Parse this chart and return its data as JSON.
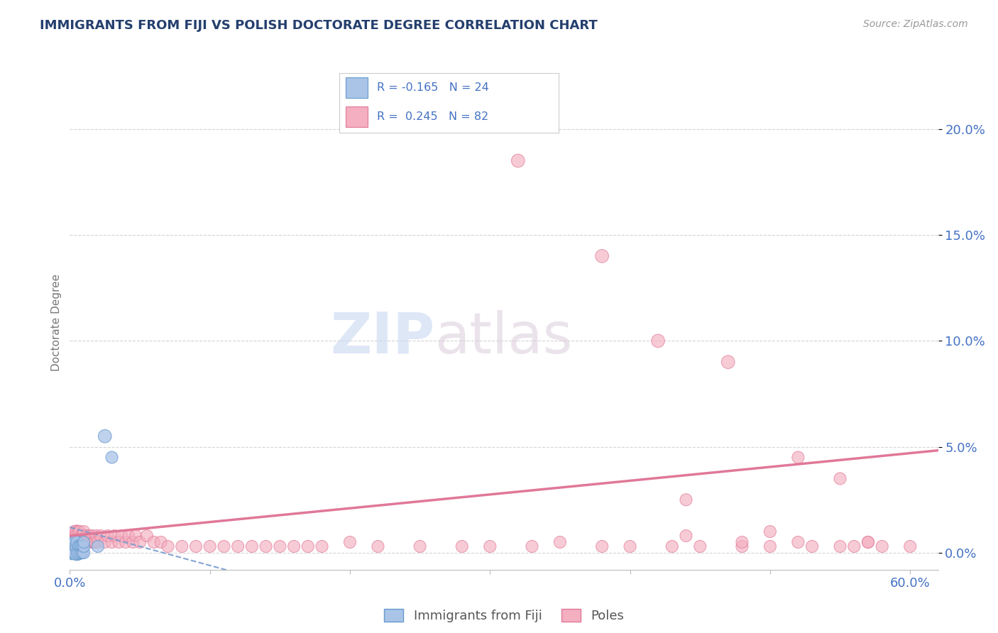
{
  "title": "IMMIGRANTS FROM FIJI VS POLISH DOCTORATE DEGREE CORRELATION CHART",
  "source_text": "Source: ZipAtlas.com",
  "ylabel": "Doctorate Degree",
  "xlim": [
    0.0,
    0.62
  ],
  "ylim": [
    -0.008,
    0.225
  ],
  "yticks": [
    0.0,
    0.05,
    0.1,
    0.15,
    0.2
  ],
  "xticks": [
    0.0,
    0.1,
    0.2,
    0.3,
    0.4,
    0.5,
    0.6
  ],
  "color_fiji": "#aac4e8",
  "color_fiji_edge": "#6699cc",
  "color_poles": "#f4afc0",
  "color_poles_edge": "#e07898",
  "color_trendline_fiji": "#7799cc",
  "color_trendline_poles": "#e07898",
  "color_axis_label": "#4472c4",
  "color_title": "#243f6e",
  "color_grid": "#d0d0d0",
  "fiji_trend_slope": -0.18,
  "fiji_trend_intercept": 0.012,
  "poles_trend_slope": 0.065,
  "poles_trend_intercept": 0.008,
  "fiji_x": [
    0.001,
    0.001,
    0.002,
    0.003,
    0.003,
    0.004,
    0.004,
    0.004,
    0.005,
    0.005,
    0.005,
    0.006,
    0.006,
    0.007,
    0.007,
    0.008,
    0.008,
    0.009,
    0.009,
    0.01,
    0.01,
    0.01,
    0.02,
    0.025,
    0.03
  ],
  "fiji_y": [
    0.0,
    0.005,
    0.005,
    0.0,
    0.005,
    0.0,
    0.003,
    0.005,
    0.0,
    0.003,
    0.005,
    0.0,
    0.003,
    0.0,
    0.003,
    0.0,
    0.003,
    0.0,
    0.003,
    0.0,
    0.003,
    0.005,
    0.003,
    0.055,
    0.045
  ],
  "fiji_sizes": [
    200,
    180,
    150,
    200,
    150,
    200,
    150,
    180,
    250,
    200,
    150,
    200,
    150,
    180,
    150,
    150,
    150,
    150,
    150,
    150,
    150,
    150,
    150,
    180,
    150
  ],
  "poles_x": [
    0.001,
    0.002,
    0.003,
    0.004,
    0.005,
    0.006,
    0.006,
    0.007,
    0.007,
    0.008,
    0.008,
    0.009,
    0.009,
    0.01,
    0.01,
    0.012,
    0.013,
    0.014,
    0.015,
    0.016,
    0.017,
    0.018,
    0.019,
    0.02,
    0.022,
    0.025,
    0.027,
    0.03,
    0.032,
    0.035,
    0.037,
    0.04,
    0.042,
    0.045,
    0.047,
    0.05,
    0.055,
    0.06,
    0.065,
    0.07,
    0.08,
    0.09,
    0.1,
    0.11,
    0.12,
    0.13,
    0.14,
    0.15,
    0.16,
    0.17,
    0.18,
    0.2,
    0.22,
    0.25,
    0.28,
    0.3,
    0.33,
    0.35,
    0.38,
    0.4,
    0.43,
    0.45,
    0.48,
    0.5,
    0.53,
    0.55,
    0.58,
    0.6,
    0.32,
    0.38,
    0.42,
    0.47,
    0.52,
    0.55,
    0.57,
    0.44,
    0.48,
    0.52,
    0.57,
    0.44,
    0.5,
    0.56
  ],
  "poles_y": [
    0.005,
    0.008,
    0.01,
    0.008,
    0.01,
    0.005,
    0.01,
    0.005,
    0.01,
    0.005,
    0.008,
    0.005,
    0.008,
    0.005,
    0.01,
    0.008,
    0.005,
    0.008,
    0.005,
    0.008,
    0.005,
    0.005,
    0.008,
    0.005,
    0.008,
    0.005,
    0.008,
    0.005,
    0.008,
    0.005,
    0.008,
    0.005,
    0.008,
    0.005,
    0.008,
    0.005,
    0.008,
    0.005,
    0.005,
    0.003,
    0.003,
    0.003,
    0.003,
    0.003,
    0.003,
    0.003,
    0.003,
    0.003,
    0.003,
    0.003,
    0.003,
    0.005,
    0.003,
    0.003,
    0.003,
    0.003,
    0.003,
    0.005,
    0.003,
    0.003,
    0.003,
    0.003,
    0.003,
    0.003,
    0.003,
    0.003,
    0.003,
    0.003,
    0.185,
    0.14,
    0.1,
    0.09,
    0.045,
    0.035,
    0.005,
    0.025,
    0.005,
    0.005,
    0.005,
    0.008,
    0.01,
    0.003
  ],
  "poles_sizes": [
    150,
    150,
    150,
    150,
    180,
    150,
    150,
    150,
    150,
    150,
    150,
    150,
    150,
    150,
    150,
    150,
    150,
    150,
    150,
    150,
    150,
    150,
    150,
    150,
    150,
    150,
    150,
    150,
    150,
    150,
    150,
    150,
    150,
    150,
    150,
    150,
    150,
    150,
    150,
    150,
    150,
    150,
    150,
    150,
    150,
    150,
    150,
    150,
    150,
    150,
    150,
    150,
    150,
    150,
    150,
    150,
    150,
    150,
    150,
    150,
    150,
    150,
    150,
    150,
    150,
    150,
    150,
    150,
    180,
    180,
    180,
    180,
    150,
    150,
    150,
    150,
    150,
    150,
    150,
    150,
    150,
    150
  ]
}
